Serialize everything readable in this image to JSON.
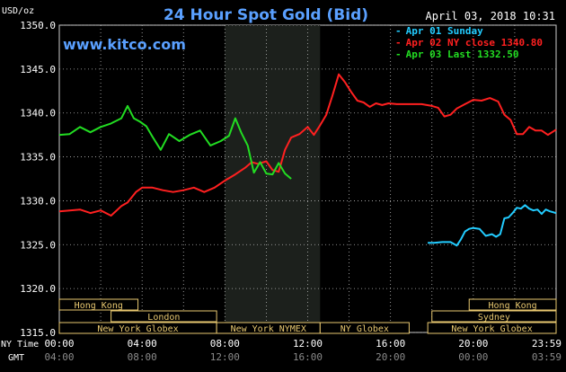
{
  "chart_data": {
    "type": "line",
    "title": "24 Hour Spot Gold (Bid)",
    "website": "www.kitco.com",
    "timestamp": "April 03, 2018 10:31",
    "ylabel": "USD/oz",
    "ylim": [
      1315,
      1350
    ],
    "yticks": [
      "1350.0",
      "1345.0",
      "1340.0",
      "1335.0",
      "1330.0",
      "1325.0",
      "1320.0",
      "1315.0"
    ],
    "xlim": [
      0,
      24
    ],
    "xticks": [
      {
        "h": 0,
        "ny": "00:00",
        "gmt": "04:00"
      },
      {
        "h": 4,
        "ny": "04:00",
        "gmt": "08:00"
      },
      {
        "h": 8,
        "ny": "08:00",
        "gmt": "12:00"
      },
      {
        "h": 12,
        "ny": "12:00",
        "gmt": "16:00"
      },
      {
        "h": 16,
        "ny": "16:00",
        "gmt": "20:00"
      },
      {
        "h": 20,
        "ny": "20:00",
        "gmt": "00:00"
      },
      {
        "h": 24,
        "ny": "23:59",
        "gmt": "03:59"
      }
    ],
    "row_labels": {
      "ny": "NY Time",
      "gmt": "GMT"
    },
    "grid": true,
    "highlight_band": [
      8,
      12.6
    ],
    "legend_position": "top-right",
    "colors": {
      "sunday": "#22ccff",
      "close": "#ff2020",
      "last": "#22dd22",
      "grid": "#b8b8b8",
      "text": "#ffffff",
      "title": "#5aa0ff",
      "market": "#e8c870"
    },
    "series": [
      {
        "name": "Apr 01 Sunday",
        "legend": "Apr 01 Sunday",
        "color": "#22ccff",
        "x": [
          17.8,
          18.1,
          18.5,
          18.9,
          19.2,
          19.4,
          19.6,
          19.8,
          20,
          20.3,
          20.6,
          20.9,
          21.1,
          21.3,
          21.5,
          21.7,
          21.9,
          22.1,
          22.3,
          22.5,
          22.7,
          22.9,
          23.1,
          23.3,
          23.5,
          23.7,
          24
        ],
        "values": [
          1325.2,
          1325.2,
          1325.3,
          1325.3,
          1324.9,
          1325.6,
          1326.5,
          1326.8,
          1326.9,
          1326.8,
          1326.0,
          1326.2,
          1325.9,
          1326.2,
          1328.0,
          1328.1,
          1328.6,
          1329.2,
          1329.1,
          1329.5,
          1329.1,
          1328.9,
          1329.0,
          1328.5,
          1329.0,
          1328.8,
          1328.6
        ]
      },
      {
        "name": "Apr 02 NY close",
        "legend": "Apr 02 NY close 1340.80",
        "color": "#ff2020",
        "x": [
          0,
          0.5,
          1,
          1.5,
          2,
          2.5,
          3,
          3.3,
          3.7,
          4,
          4.5,
          5,
          5.5,
          6,
          6.5,
          7,
          7.5,
          8,
          8.5,
          9,
          9.3,
          9.6,
          10,
          10.3,
          10.6,
          10.9,
          11.2,
          11.6,
          12,
          12.3,
          12.6,
          12.9,
          13.2,
          13.5,
          13.8,
          14.1,
          14.4,
          14.7,
          15,
          15.3,
          15.6,
          15.9,
          16.3,
          16.7,
          17,
          17.5,
          18,
          18.3,
          18.6,
          18.9,
          19.2,
          19.6,
          20,
          20.4,
          20.8,
          21.2,
          21.5,
          21.8,
          22.1,
          22.4,
          22.7,
          23,
          23.3,
          23.6,
          24
        ],
        "values": [
          1328.8,
          1328.9,
          1329.0,
          1328.6,
          1328.9,
          1328.3,
          1329.4,
          1329.8,
          1331.0,
          1331.5,
          1331.5,
          1331.2,
          1331.0,
          1331.2,
          1331.5,
          1331.0,
          1331.5,
          1332.3,
          1333.0,
          1333.8,
          1334.4,
          1334.2,
          1334.5,
          1333.5,
          1333.3,
          1335.8,
          1337.2,
          1337.6,
          1338.4,
          1337.5,
          1338.6,
          1339.8,
          1342.0,
          1344.4,
          1343.5,
          1342.4,
          1341.4,
          1341.2,
          1340.7,
          1341.1,
          1340.9,
          1341.1,
          1341.0,
          1341.0,
          1341.0,
          1341.0,
          1340.8,
          1340.6,
          1339.6,
          1339.8,
          1340.5,
          1341.0,
          1341.5,
          1341.4,
          1341.7,
          1341.3,
          1339.8,
          1339.2,
          1337.6,
          1337.6,
          1338.4,
          1338.0,
          1338.0,
          1337.5,
          1338.1
        ]
      },
      {
        "name": "Apr 03 Last",
        "legend": "Apr 03 Last 1332.50",
        "color": "#22dd22",
        "x": [
          0,
          0.5,
          1,
          1.5,
          2,
          2.5,
          3,
          3.3,
          3.6,
          3.9,
          4.2,
          4.5,
          4.9,
          5.3,
          5.8,
          6.3,
          6.8,
          7.3,
          7.8,
          8.2,
          8.5,
          8.8,
          9.1,
          9.4,
          9.7,
          10,
          10.3,
          10.6,
          10.9,
          11.2
        ],
        "values": [
          1337.5,
          1337.6,
          1338.4,
          1337.8,
          1338.4,
          1338.8,
          1339.4,
          1340.8,
          1339.4,
          1339.0,
          1338.5,
          1337.3,
          1335.8,
          1337.6,
          1336.8,
          1337.5,
          1338.0,
          1336.3,
          1336.8,
          1337.4,
          1339.4,
          1337.7,
          1336.3,
          1333.2,
          1334.4,
          1333.1,
          1333.0,
          1334.3,
          1333.1,
          1332.5
        ]
      }
    ],
    "sessions": [
      {
        "label": "Hong Kong",
        "start": 0,
        "end": 3.8,
        "row": 0
      },
      {
        "label": "London",
        "start": 2.5,
        "end": 7.6,
        "row": 1
      },
      {
        "label": "New York Globex",
        "start": 0,
        "end": 7.6,
        "row": 2
      },
      {
        "label": "New York NYMEX",
        "start": 7.6,
        "end": 12.6,
        "row": 2
      },
      {
        "label": "NY Globex",
        "start": 12.6,
        "end": 16.9,
        "row": 2
      },
      {
        "label": "Hong Kong",
        "start": 19.8,
        "end": 24,
        "row": 0
      },
      {
        "label": "Sydney",
        "start": 18,
        "end": 24,
        "row": 1
      },
      {
        "label": "New York Globex",
        "start": 17.8,
        "end": 24,
        "row": 2
      }
    ]
  }
}
